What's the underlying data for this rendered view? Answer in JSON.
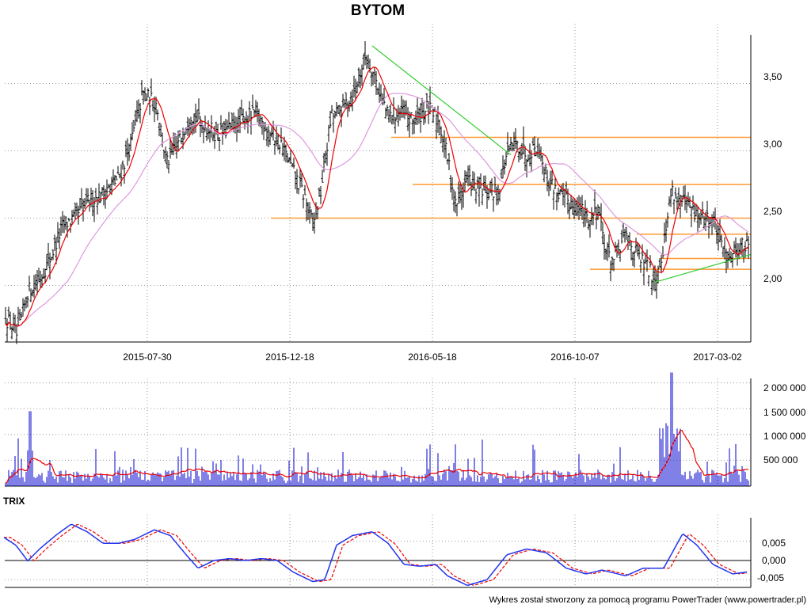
{
  "chart_data": [
    {
      "type": "candlestick",
      "title": "BYTOM",
      "x_ticks": [
        "2015-07-30",
        "2015-12-18",
        "2016-05-18",
        "2016-10-07",
        "2017-03-02"
      ],
      "y_ticks": [
        "2,00",
        "2,50",
        "3,00",
        "3,50"
      ],
      "y_tick_values": [
        2.0,
        2.5,
        3.0,
        3.5
      ],
      "ylim": [
        1.55,
        3.95
      ],
      "n_bars": 470,
      "price_anchors": [
        [
          0,
          1.82
        ],
        [
          12,
          1.72
        ],
        [
          22,
          1.62
        ],
        [
          35,
          1.95
        ],
        [
          50,
          2.05
        ],
        [
          62,
          2.18
        ],
        [
          80,
          2.45
        ],
        [
          95,
          2.5
        ],
        [
          110,
          2.62
        ],
        [
          130,
          2.68
        ],
        [
          150,
          2.8
        ],
        [
          165,
          3.05
        ],
        [
          180,
          3.42
        ],
        [
          198,
          3.35
        ],
        [
          210,
          2.9
        ],
        [
          225,
          3.05
        ],
        [
          240,
          3.28
        ],
        [
          255,
          3.2
        ],
        [
          275,
          3.12
        ],
        [
          300,
          3.2
        ],
        [
          322,
          3.28
        ],
        [
          340,
          3.15
        ],
        [
          355,
          3.05
        ],
        [
          370,
          2.85
        ],
        [
          385,
          2.65
        ],
        [
          395,
          2.45
        ],
        [
          405,
          2.7
        ],
        [
          418,
          3.25
        ],
        [
          430,
          3.3
        ],
        [
          448,
          3.45
        ],
        [
          462,
          3.72
        ],
        [
          475,
          3.52
        ],
        [
          490,
          3.25
        ],
        [
          505,
          3.28
        ],
        [
          520,
          3.22
        ],
        [
          540,
          3.32
        ],
        [
          555,
          3.2
        ],
        [
          565,
          2.95
        ],
        [
          575,
          2.6
        ],
        [
          590,
          2.8
        ],
        [
          600,
          2.72
        ],
        [
          615,
          2.68
        ],
        [
          630,
          2.72
        ],
        [
          640,
          2.98
        ],
        [
          652,
          3.05
        ],
        [
          665,
          2.98
        ],
        [
          680,
          3.05
        ],
        [
          690,
          2.8
        ],
        [
          705,
          2.68
        ],
        [
          720,
          2.62
        ],
        [
          735,
          2.55
        ],
        [
          745,
          2.48
        ],
        [
          755,
          2.6
        ],
        [
          765,
          2.25
        ],
        [
          775,
          2.18
        ],
        [
          790,
          2.38
        ],
        [
          805,
          2.22
        ],
        [
          818,
          2.12
        ],
        [
          828,
          2.05
        ],
        [
          838,
          2.3
        ],
        [
          848,
          2.72
        ],
        [
          858,
          2.62
        ],
        [
          868,
          2.6
        ],
        [
          878,
          2.52
        ],
        [
          890,
          2.5
        ],
        [
          902,
          2.48
        ],
        [
          910,
          2.28
        ],
        [
          920,
          2.22
        ],
        [
          935,
          2.3
        ],
        [
          946,
          2.28
        ]
      ],
      "moving_averages": [
        {
          "color": "#ee0000",
          "period": 10
        },
        {
          "color": "#dd99dd",
          "period": 40
        }
      ],
      "resistance_lines": [
        {
          "from": 342,
          "to": 948,
          "value": 2.5,
          "color": "#ff9933"
        },
        {
          "from": 494,
          "to": 948,
          "value": 3.1,
          "color": "#ff9933"
        },
        {
          "from": 521,
          "to": 948,
          "value": 2.75,
          "color": "#ff9933"
        },
        {
          "from": 804,
          "to": 948,
          "value": 2.38,
          "color": "#ff9933"
        },
        {
          "from": 834,
          "to": 948,
          "value": 2.2,
          "color": "#ff9933"
        },
        {
          "from": 745,
          "to": 948,
          "value": 2.12,
          "color": "#ff9933"
        }
      ],
      "trend_lines": [
        {
          "x1": 470,
          "y1": 3.78,
          "x2": 645,
          "y2": 2.97,
          "color": "#33cc33"
        },
        {
          "x1": 825,
          "y1": 2.02,
          "x2": 948,
          "y2": 2.23,
          "color": "#33cc33"
        }
      ]
    },
    {
      "type": "bar",
      "title": "",
      "y_ticks": [
        "500 000",
        "1 000 000",
        "1 500 000",
        "2 000 000"
      ],
      "y_tick_values": [
        500000,
        1000000,
        1500000,
        2000000
      ],
      "ylim": [
        0,
        2300000
      ],
      "series": [
        {
          "name": "",
          "color": "#0000cc",
          "kind": "volume"
        },
        {
          "name": "",
          "color": "#ee0000",
          "kind": "volume-average"
        }
      ]
    },
    {
      "type": "line",
      "title": "TRIX",
      "y_ticks": [
        "0,005",
        "0,000",
        "-0,005"
      ],
      "y_tick_values": [
        0.005,
        0.0,
        -0.005
      ],
      "ylim": [
        -0.0075,
        0.0095
      ],
      "trix_anchors": [
        [
          5,
          0.006
        ],
        [
          20,
          0.004
        ],
        [
          35,
          -0.0001
        ],
        [
          50,
          0.003
        ],
        [
          70,
          0.0065
        ],
        [
          90,
          0.0095
        ],
        [
          110,
          0.0075
        ],
        [
          130,
          0.0045
        ],
        [
          150,
          0.0045
        ],
        [
          170,
          0.0055
        ],
        [
          195,
          0.008
        ],
        [
          215,
          0.0065
        ],
        [
          235,
          0.0015
        ],
        [
          250,
          -0.002
        ],
        [
          270,
          0.0
        ],
        [
          290,
          0.0005
        ],
        [
          310,
          0.0
        ],
        [
          330,
          0.0005
        ],
        [
          350,
          0.0
        ],
        [
          370,
          -0.003
        ],
        [
          395,
          -0.0055
        ],
        [
          410,
          -0.005
        ],
        [
          425,
          0.004
        ],
        [
          445,
          0.0065
        ],
        [
          470,
          0.0075
        ],
        [
          490,
          0.0045
        ],
        [
          510,
          -0.001
        ],
        [
          530,
          -0.0015
        ],
        [
          550,
          -0.001
        ],
        [
          565,
          -0.004
        ],
        [
          590,
          -0.0065
        ],
        [
          615,
          -0.005
        ],
        [
          640,
          0.0015
        ],
        [
          665,
          0.003
        ],
        [
          690,
          0.002
        ],
        [
          715,
          -0.002
        ],
        [
          740,
          -0.0035
        ],
        [
          760,
          -0.0025
        ],
        [
          790,
          -0.004
        ],
        [
          812,
          -0.002
        ],
        [
          838,
          -0.002
        ],
        [
          862,
          0.007
        ],
        [
          880,
          0.004
        ],
        [
          900,
          -0.001
        ],
        [
          925,
          -0.0035
        ],
        [
          943,
          -0.003
        ]
      ]
    }
  ],
  "footer": "Wykres został stworzony za pomocą programu PowerTrader (www.powertrader.pl)",
  "colors": {
    "price_bars": "#000000",
    "ma_fast": "#ee0000",
    "ma_slow": "#dd99dd",
    "support": "#ff9933",
    "trend": "#33cc33",
    "volume": "#0000cc",
    "volume_avg": "#ee0000",
    "trix": "#2233ee",
    "trix_signal": "#ee0000",
    "grid": "#9a9a9a"
  }
}
